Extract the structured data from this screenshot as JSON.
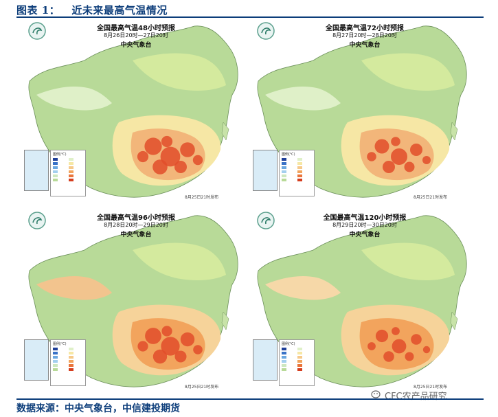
{
  "figure": {
    "title": "图表 1：   近未来最高气温情况",
    "source": "数据来源：中央气象台，中信建投期货",
    "watermark": "CFC农产品研究"
  },
  "colors": {
    "header_blue": "#0c3d7a",
    "cool_green": "#a9d08e",
    "warm_yellow": "#f6e7a5",
    "hot_orange": "#f2a45d",
    "very_hot_red": "#e24e2a",
    "sea_blue": "#bfe3f4"
  },
  "panels": [
    {
      "title": "全国最高气温48小时预报",
      "period": "8月26日20时—27日20时",
      "agency": "中央气象台",
      "issued": "8月25日21时发布",
      "legend_title": "图例(℃)",
      "heat_level": 0.9
    },
    {
      "title": "全国最高气温72小时预报",
      "period": "8月27日20时—28日20时",
      "agency": "中央气象台",
      "issued": "8月25日21时发布",
      "legend_title": "图例(℃)",
      "heat_level": 0.75
    },
    {
      "title": "全国最高气温96小时预报",
      "period": "8月28日20时—29日20时",
      "agency": "中央气象台",
      "issued": "8月25日21时发布",
      "legend_title": "图例(℃)",
      "heat_level": 0.85
    },
    {
      "title": "全国最高气温120小时预报",
      "period": "8月29日20时—30日20时",
      "agency": "中央气象台",
      "issued": "8月25日21时发布",
      "legend_title": "图例(℃)",
      "heat_level": 0.65
    }
  ]
}
